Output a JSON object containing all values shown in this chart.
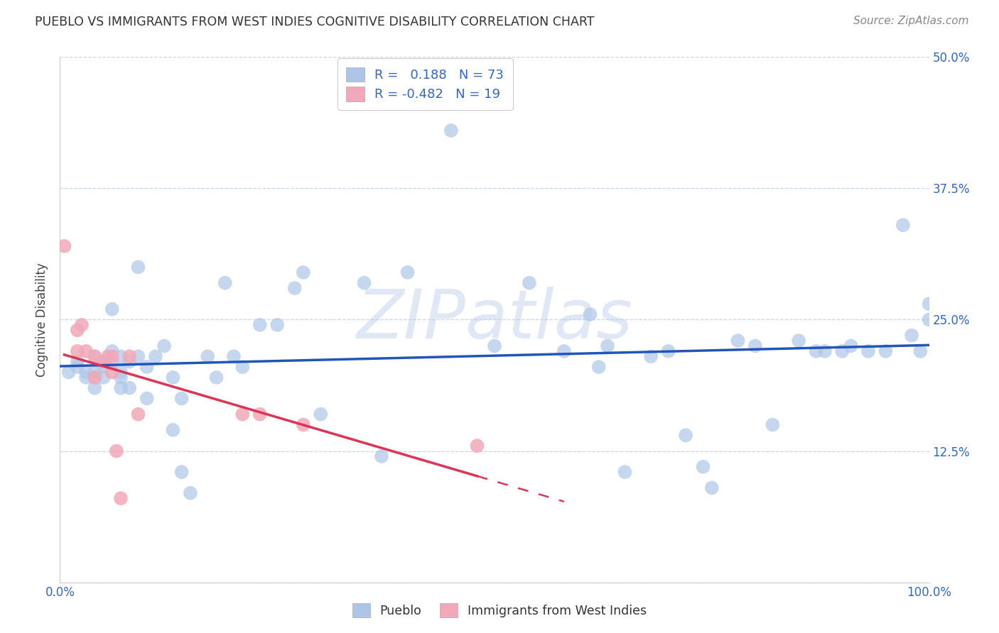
{
  "title": "PUEBLO VS IMMIGRANTS FROM WEST INDIES COGNITIVE DISABILITY CORRELATION CHART",
  "source": "Source: ZipAtlas.com",
  "ylabel": "Cognitive Disability",
  "watermark": "ZIPatlas",
  "pueblo_r": 0.188,
  "pueblo_n": 73,
  "wi_r": -0.482,
  "wi_n": 19,
  "xlim": [
    0.0,
    1.0
  ],
  "ylim": [
    0.0,
    0.5
  ],
  "yticks": [
    0.0,
    0.125,
    0.25,
    0.375,
    0.5
  ],
  "ytick_labels": [
    "",
    "12.5%",
    "25.0%",
    "37.5%",
    "50.0%"
  ],
  "xtick_labels": [
    "0.0%",
    "",
    "",
    "",
    "",
    "",
    "",
    "",
    "",
    "",
    "100.0%"
  ],
  "blue_color": "#adc6e8",
  "pink_color": "#f2a8b8",
  "line_blue": "#2255bb",
  "line_pink": "#dd3355",
  "background": "#ffffff",
  "grid_color": "#c8d4e8",
  "axis_color": "#3366cc",
  "title_color": "#333333",
  "source_color": "#888888",
  "ylabel_color": "#444444",
  "pueblo_x": [
    0.01,
    0.02,
    0.02,
    0.03,
    0.03,
    0.04,
    0.04,
    0.04,
    0.04,
    0.05,
    0.05,
    0.05,
    0.06,
    0.06,
    0.06,
    0.07,
    0.07,
    0.07,
    0.07,
    0.08,
    0.08,
    0.09,
    0.09,
    0.1,
    0.1,
    0.11,
    0.12,
    0.13,
    0.13,
    0.14,
    0.14,
    0.15,
    0.17,
    0.18,
    0.19,
    0.2,
    0.21,
    0.23,
    0.25,
    0.27,
    0.28,
    0.3,
    0.35,
    0.37,
    0.4,
    0.45,
    0.5,
    0.54,
    0.58,
    0.61,
    0.62,
    0.63,
    0.65,
    0.68,
    0.7,
    0.72,
    0.74,
    0.75,
    0.78,
    0.8,
    0.82,
    0.85,
    0.87,
    0.88,
    0.9,
    0.91,
    0.93,
    0.95,
    0.97,
    0.98,
    0.99,
    1.0,
    1.0
  ],
  "pueblo_y": [
    0.2,
    0.21,
    0.205,
    0.2,
    0.195,
    0.2,
    0.215,
    0.195,
    0.185,
    0.21,
    0.205,
    0.195,
    0.26,
    0.22,
    0.21,
    0.2,
    0.215,
    0.195,
    0.185,
    0.21,
    0.185,
    0.215,
    0.3,
    0.205,
    0.175,
    0.215,
    0.225,
    0.195,
    0.145,
    0.175,
    0.105,
    0.085,
    0.215,
    0.195,
    0.285,
    0.215,
    0.205,
    0.245,
    0.245,
    0.28,
    0.295,
    0.16,
    0.285,
    0.12,
    0.295,
    0.43,
    0.225,
    0.285,
    0.22,
    0.255,
    0.205,
    0.225,
    0.105,
    0.215,
    0.22,
    0.14,
    0.11,
    0.09,
    0.23,
    0.225,
    0.15,
    0.23,
    0.22,
    0.22,
    0.22,
    0.225,
    0.22,
    0.22,
    0.34,
    0.235,
    0.22,
    0.265,
    0.25
  ],
  "wi_x": [
    0.005,
    0.02,
    0.02,
    0.025,
    0.03,
    0.04,
    0.04,
    0.05,
    0.055,
    0.06,
    0.06,
    0.065,
    0.07,
    0.08,
    0.09,
    0.21,
    0.23,
    0.28,
    0.48
  ],
  "wi_y": [
    0.32,
    0.24,
    0.22,
    0.245,
    0.22,
    0.215,
    0.195,
    0.21,
    0.215,
    0.215,
    0.2,
    0.125,
    0.08,
    0.215,
    0.16,
    0.16,
    0.16,
    0.15,
    0.13
  ]
}
